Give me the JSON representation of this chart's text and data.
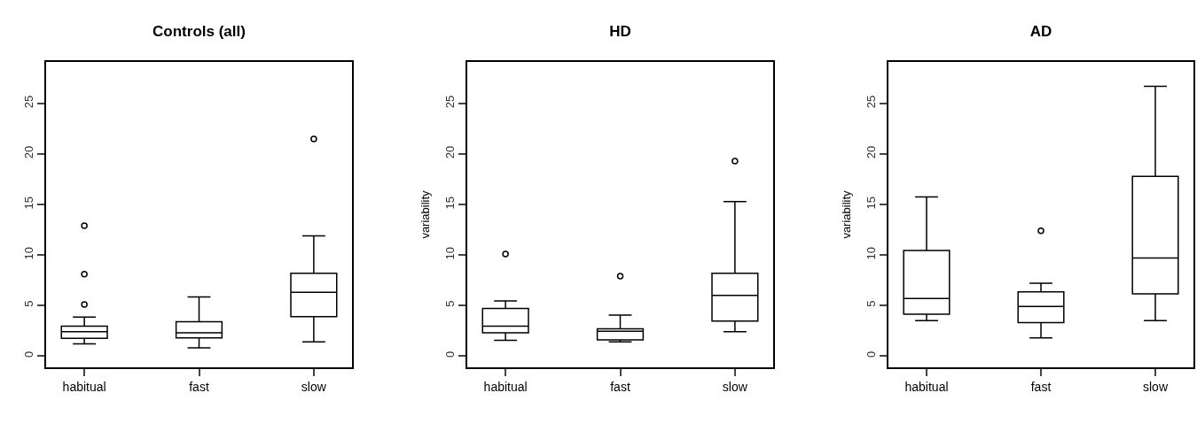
{
  "chart_data": [
    {
      "type": "box",
      "title": "Controls (all)",
      "categories": [
        "habitual",
        "fast",
        "slow"
      ],
      "ylim": [
        -1.12,
        29.12
      ],
      "yticks": [
        0,
        5,
        10,
        15,
        20,
        25
      ],
      "grid": false,
      "legend": false,
      "boxes": [
        {
          "low": 1.2,
          "q1": 1.75,
          "median": 2.4,
          "q3": 2.95,
          "high": 3.85,
          "outliers": [
            5.1,
            8.1,
            12.9
          ]
        },
        {
          "low": 0.8,
          "q1": 1.8,
          "median": 2.3,
          "q3": 3.4,
          "high": 5.85
        },
        {
          "low": 1.4,
          "q1": 3.9,
          "median": 6.3,
          "q3": 8.2,
          "high": 11.9,
          "outliers": [
            21.5
          ]
        }
      ]
    },
    {
      "type": "box",
      "title": "HD",
      "ylabel": "variability",
      "categories": [
        "habitual",
        "fast",
        "slow"
      ],
      "ylim": [
        -1.12,
        29.12
      ],
      "yticks": [
        0,
        5,
        10,
        15,
        20,
        25
      ],
      "grid": false,
      "legend": false,
      "boxes": [
        {
          "low": 1.55,
          "q1": 2.3,
          "median": 2.95,
          "q3": 4.7,
          "high": 5.45,
          "outliers": [
            10.1
          ]
        },
        {
          "low": 1.4,
          "q1": 1.6,
          "median": 2.45,
          "q3": 2.7,
          "high": 4.05,
          "outliers": [
            7.9
          ]
        },
        {
          "low": 2.4,
          "q1": 3.45,
          "median": 6.0,
          "q3": 8.2,
          "high": 15.3,
          "outliers": [
            19.3
          ]
        }
      ]
    },
    {
      "type": "box",
      "title": "AD",
      "ylabel": "variability",
      "categories": [
        "habitual",
        "fast",
        "slow"
      ],
      "ylim": [
        -1.12,
        29.12
      ],
      "yticks": [
        0,
        5,
        10,
        15,
        20,
        25
      ],
      "grid": false,
      "legend": false,
      "boxes": [
        {
          "low": 3.5,
          "q1": 4.15,
          "median": 5.7,
          "q3": 10.45,
          "high": 15.75
        },
        {
          "low": 1.8,
          "q1": 3.3,
          "median": 4.9,
          "q3": 6.35,
          "high": 7.2,
          "outliers": [
            12.4
          ]
        },
        {
          "low": 3.5,
          "q1": 6.15,
          "median": 9.7,
          "q3": 17.8,
          "high": 26.7
        }
      ]
    }
  ]
}
